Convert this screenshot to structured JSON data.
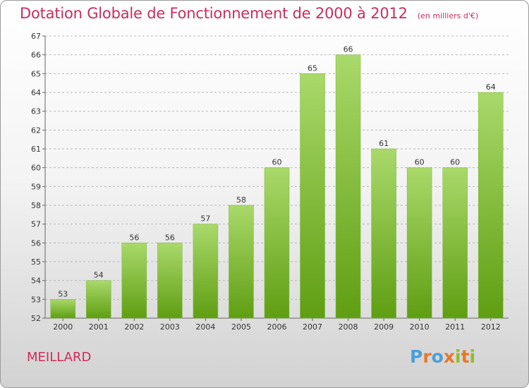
{
  "title": "Dotation Globale de Fonctionnement de 2000 à 2012",
  "subtitle": "(en milliers d'€)",
  "commune": "MEILLARD",
  "logo": "Proxiti",
  "colors": {
    "title": "#cc2c5c",
    "bar_top": "#a9d96a",
    "bar_bottom": "#5f9e12",
    "grid": "#b9b9b9",
    "logo": [
      "#4aa0d8",
      "#e8782a",
      "#4aa0d8",
      "#e8782a",
      "#8cbf2a",
      "#e8782a",
      "#8cbf2a"
    ]
  },
  "chart_data": {
    "type": "bar",
    "title": "Dotation Globale de Fonctionnement de 2000 à 2012",
    "subtitle": "(en milliers d'€)",
    "categories": [
      "2000",
      "2001",
      "2002",
      "2003",
      "2004",
      "2005",
      "2006",
      "2007",
      "2008",
      "2009",
      "2010",
      "2011",
      "2012"
    ],
    "values": [
      53,
      54,
      56,
      56,
      57,
      58,
      60,
      65,
      66,
      61,
      60,
      60,
      64
    ],
    "ylim": [
      52,
      67
    ],
    "yticks": [
      52,
      53,
      54,
      55,
      56,
      57,
      58,
      59,
      60,
      61,
      62,
      63,
      64,
      65,
      66,
      67
    ],
    "grid": true,
    "legend": "none"
  }
}
